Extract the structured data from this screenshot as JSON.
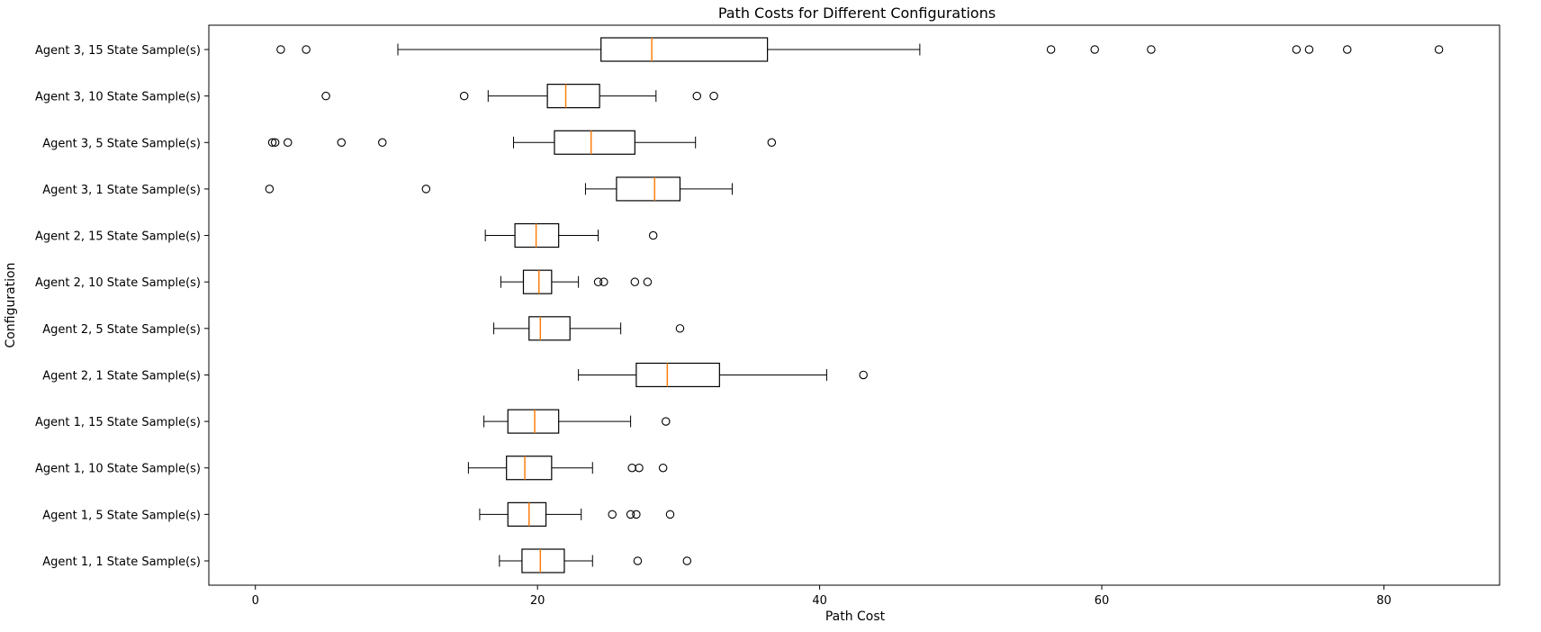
{
  "chart_data": {
    "type": "boxplot",
    "title": "Path Costs for Different Configurations",
    "xlabel": "Path Cost",
    "ylabel": "Configuration",
    "xlim": [
      -3.3,
      88.2
    ],
    "x_ticks": [
      0,
      20,
      40,
      60,
      80
    ],
    "grid": false,
    "orientation": "horizontal",
    "colors": {
      "box": "#000000",
      "median": "#ff7f0e",
      "flier": "#000000"
    },
    "series": [
      {
        "name": "Agent 3, 15 State Sample(s)",
        "whisker_low": 10.1,
        "q1": 24.5,
        "median": 28.1,
        "q3": 36.3,
        "whisker_high": 47.1,
        "outliers": [
          1.8,
          3.6,
          56.4,
          59.5,
          63.5,
          73.8,
          74.7,
          77.4,
          83.9
        ]
      },
      {
        "name": "Agent 3, 10 State Sample(s)",
        "whisker_low": 16.5,
        "q1": 20.7,
        "median": 22.0,
        "q3": 24.4,
        "whisker_high": 28.4,
        "outliers": [
          5.0,
          14.8,
          31.3,
          32.5
        ]
      },
      {
        "name": "Agent 3, 5 State Sample(s)",
        "whisker_low": 18.3,
        "q1": 21.2,
        "median": 23.8,
        "q3": 26.9,
        "whisker_high": 31.2,
        "outliers": [
          1.2,
          1.4,
          2.3,
          6.1,
          9.0,
          36.6
        ]
      },
      {
        "name": "Agent 3, 1 State Sample(s)",
        "whisker_low": 23.4,
        "q1": 25.6,
        "median": 28.3,
        "q3": 30.1,
        "whisker_high": 33.8,
        "outliers": [
          1.0,
          12.1
        ]
      },
      {
        "name": "Agent 2, 15 State Sample(s)",
        "whisker_low": 16.3,
        "q1": 18.4,
        "median": 19.9,
        "q3": 21.5,
        "whisker_high": 24.3,
        "outliers": [
          28.2
        ]
      },
      {
        "name": "Agent 2, 10 State Sample(s)",
        "whisker_low": 17.4,
        "q1": 19.0,
        "median": 20.1,
        "q3": 21.0,
        "whisker_high": 22.9,
        "outliers": [
          24.3,
          24.7,
          26.9,
          27.8
        ]
      },
      {
        "name": "Agent 2, 5 State Sample(s)",
        "whisker_low": 16.9,
        "q1": 19.4,
        "median": 20.2,
        "q3": 22.3,
        "whisker_high": 25.9,
        "outliers": [
          30.1
        ]
      },
      {
        "name": "Agent 2, 1 State Sample(s)",
        "whisker_low": 22.9,
        "q1": 27.0,
        "median": 29.2,
        "q3": 32.9,
        "whisker_high": 40.5,
        "outliers": [
          43.1
        ]
      },
      {
        "name": "Agent 1, 15 State Sample(s)",
        "whisker_low": 16.2,
        "q1": 17.9,
        "median": 19.8,
        "q3": 21.5,
        "whisker_high": 26.6,
        "outliers": [
          29.1
        ]
      },
      {
        "name": "Agent 1, 10 State Sample(s)",
        "whisker_low": 15.1,
        "q1": 17.8,
        "median": 19.1,
        "q3": 21.0,
        "whisker_high": 23.9,
        "outliers": [
          26.7,
          27.2,
          28.9
        ]
      },
      {
        "name": "Agent 1, 5 State Sample(s)",
        "whisker_low": 15.9,
        "q1": 17.9,
        "median": 19.4,
        "q3": 20.6,
        "whisker_high": 23.1,
        "outliers": [
          25.3,
          26.6,
          27.0,
          29.4
        ]
      },
      {
        "name": "Agent 1, 1 State Sample(s)",
        "whisker_low": 17.3,
        "q1": 18.9,
        "median": 20.2,
        "q3": 21.9,
        "whisker_high": 23.9,
        "outliers": [
          27.1,
          30.6
        ]
      }
    ]
  }
}
